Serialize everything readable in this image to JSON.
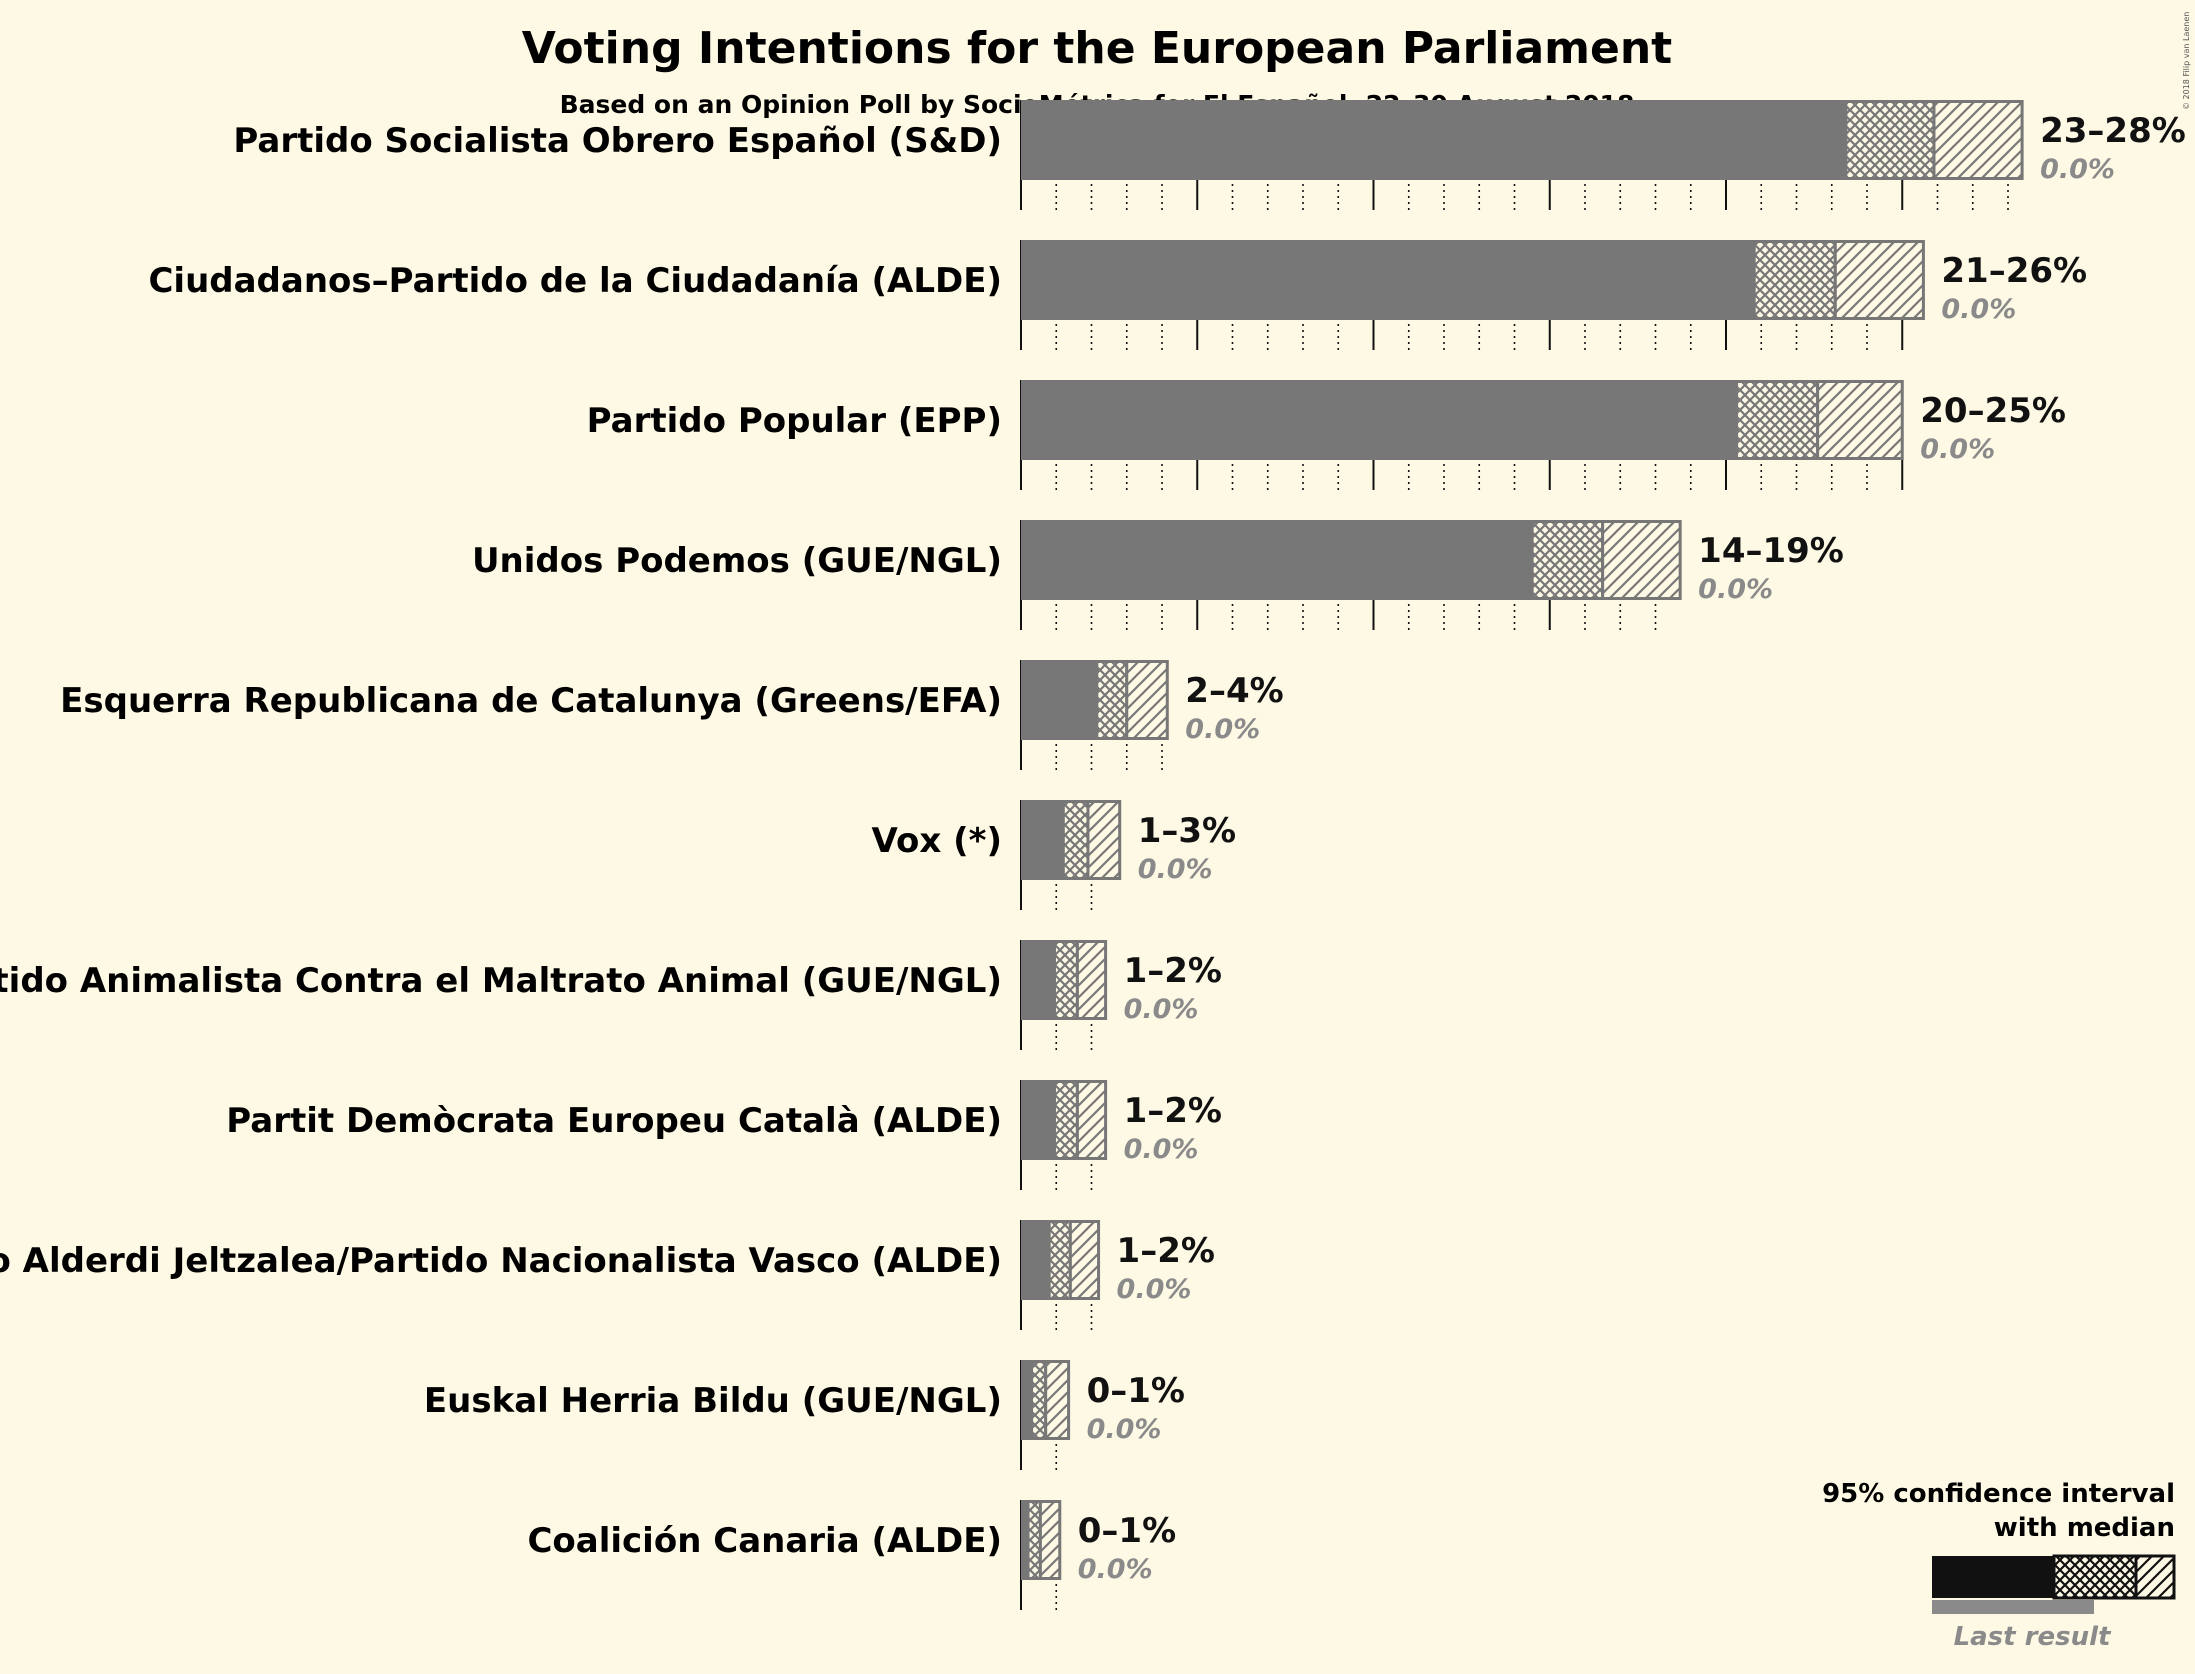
{
  "title": "Voting Intentions for the European Parliament",
  "subtitle": "Based on an Opinion Poll by SocioMétrica for El Español, 22–30 August 2018",
  "copyright": "© 2018 Filip van Laenen",
  "colors": {
    "background": "#fdf9e5",
    "bar": "#777777",
    "ink": "#111111",
    "last_result": "#8a8a8a"
  },
  "legend": {
    "line1": "95% confidence interval",
    "line2": "with median",
    "last_result": "Last result"
  },
  "chart_data": {
    "type": "bar",
    "orientation": "horizontal",
    "xlim": [
      0,
      28.5
    ],
    "grid": "dotted minor at 1%, solid major at 5%",
    "series": [
      {
        "party": "Partido Socialista Obrero Español (S&D)",
        "low": 23.4,
        "median": 25.9,
        "high": 28.4,
        "range_label": "23–28%",
        "last_result": "0.0%"
      },
      {
        "party": "Ciudadanos–Partido de la Ciudadanía (ALDE)",
        "low": 20.8,
        "median": 23.1,
        "high": 25.6,
        "range_label": "21–26%",
        "last_result": "0.0%"
      },
      {
        "party": "Partido Popular (EPP)",
        "low": 20.3,
        "median": 22.6,
        "high": 25.0,
        "range_label": "20–25%",
        "last_result": "0.0%"
      },
      {
        "party": "Unidos Podemos (GUE/NGL)",
        "low": 14.5,
        "median": 16.5,
        "high": 18.7,
        "range_label": "14–19%",
        "last_result": "0.0%"
      },
      {
        "party": "Esquerra Republicana de Catalunya (Greens/EFA)",
        "low": 2.15,
        "median": 3.0,
        "high": 4.15,
        "range_label": "2–4%",
        "last_result": "0.0%"
      },
      {
        "party": "Vox (*)",
        "low": 1.2,
        "median": 1.9,
        "high": 2.8,
        "range_label": "1–3%",
        "last_result": "0.0%"
      },
      {
        "party": "Partido Animalista Contra el Maltrato Animal (GUE/NGL)",
        "low": 0.95,
        "median": 1.6,
        "high": 2.4,
        "range_label": "1–2%",
        "last_result": "0.0%"
      },
      {
        "party": "Partit Demòcrata Europeu Català (ALDE)",
        "low": 0.95,
        "median": 1.6,
        "high": 2.4,
        "range_label": "1–2%",
        "last_result": "0.0%"
      },
      {
        "party": "Euzko Alderdi Jeltzalea/Partido Nacionalista Vasco (ALDE)",
        "low": 0.8,
        "median": 1.4,
        "high": 2.2,
        "range_label": "1–2%",
        "last_result": "0.0%"
      },
      {
        "party": "Euskal Herria Bildu (GUE/NGL)",
        "low": 0.3,
        "median": 0.7,
        "high": 1.35,
        "range_label": "0–1%",
        "last_result": "0.0%"
      },
      {
        "party": "Coalición Canaria (ALDE)",
        "low": 0.2,
        "median": 0.55,
        "high": 1.1,
        "range_label": "0–1%",
        "last_result": "0.0%"
      }
    ]
  }
}
